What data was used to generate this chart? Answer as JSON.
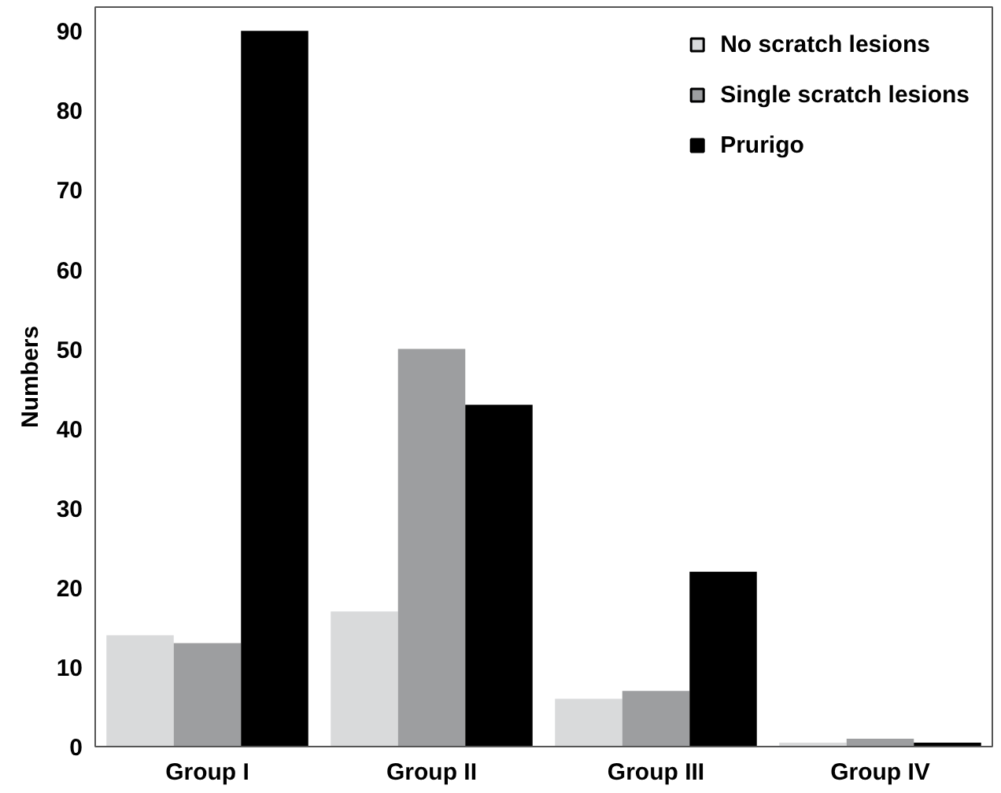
{
  "chart_data": {
    "type": "bar",
    "ylabel": "Numbers",
    "categories": [
      "Group I",
      "Group II",
      "Group III",
      "Group IV"
    ],
    "series": [
      {
        "name": "No scratch lesions",
        "color": "#d9dadb",
        "values": [
          14,
          17,
          6,
          0.5
        ]
      },
      {
        "name": "Single scratch lesions",
        "color": "#9d9ea0",
        "values": [
          13,
          50,
          7,
          1
        ]
      },
      {
        "name": "Prurigo",
        "color": "#000000",
        "values": [
          90,
          43,
          22,
          0.5
        ]
      }
    ],
    "ylim": [
      0,
      93
    ],
    "yticks": [
      0,
      10,
      20,
      30,
      40,
      50,
      60,
      70,
      80,
      90
    ],
    "grid": false,
    "legend": "top right"
  }
}
